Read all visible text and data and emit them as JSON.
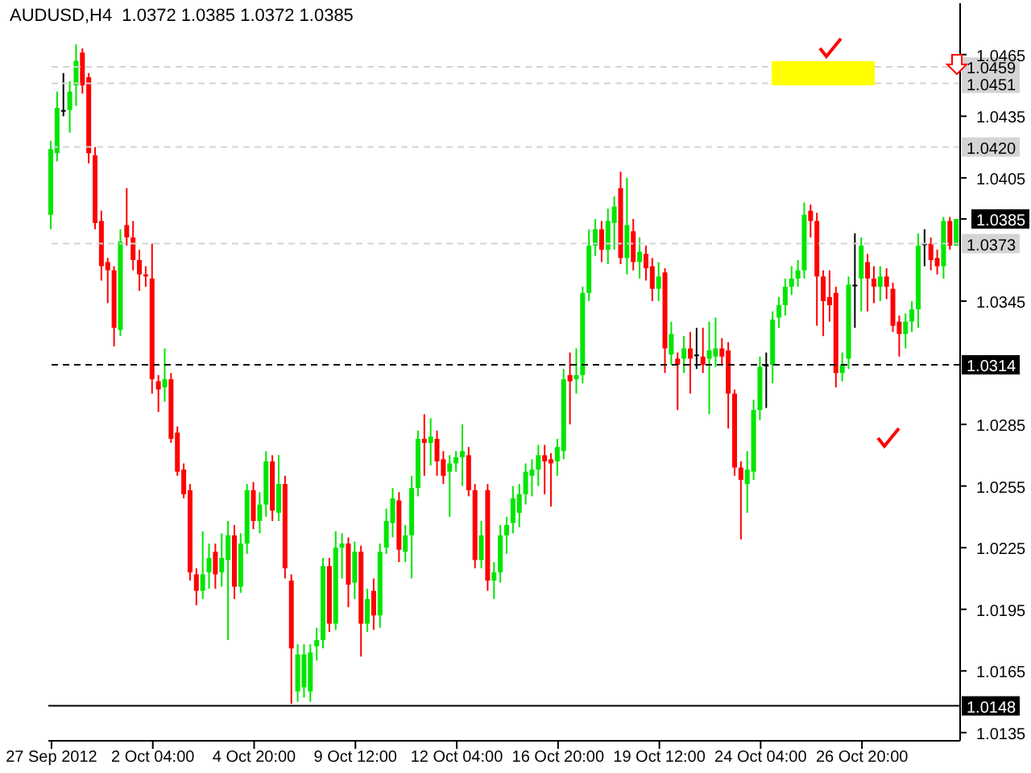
{
  "chart_data": {
    "type": "candlestick",
    "title": "AUDUSD,H4  1.0372 1.0385 1.0372 1.0385",
    "categories": [
      "27 Sep 2012",
      null,
      null,
      null,
      null,
      null,
      null,
      null,
      null,
      null,
      null,
      null,
      null,
      null,
      null,
      null,
      "2 Oct 04:00",
      null,
      null,
      null,
      null,
      null,
      null,
      null,
      null,
      null,
      null,
      null,
      null,
      null,
      null,
      null,
      "4 Oct 20:00",
      null,
      null,
      null,
      null,
      null,
      null,
      null,
      null,
      null,
      null,
      null,
      null,
      null,
      null,
      null,
      "9 Oct 12:00",
      null,
      null,
      null,
      null,
      null,
      null,
      null,
      null,
      null,
      null,
      null,
      null,
      null,
      null,
      null,
      "12 Oct 04:00",
      null,
      null,
      null,
      null,
      null,
      null,
      null,
      null,
      null,
      null,
      null,
      null,
      null,
      null,
      null,
      "16 Oct 20:00",
      null,
      null,
      null,
      null,
      null,
      null,
      null,
      null,
      null,
      null,
      null,
      null,
      null,
      null,
      null,
      "19 Oct 12:00",
      null,
      null,
      null,
      null,
      null,
      null,
      null,
      null,
      null,
      null,
      null,
      null,
      null,
      null,
      null,
      "24 Oct 04:00",
      null,
      null,
      null,
      null,
      null,
      null,
      null,
      null,
      null,
      null,
      null,
      null,
      null,
      null,
      null,
      "26 Oct 20:00",
      null,
      null,
      null,
      null,
      null,
      null,
      null,
      null,
      null,
      null,
      null,
      null,
      null,
      null,
      null
    ],
    "ohlc": [
      [
        1.0387,
        1.0423,
        1.038,
        1.0419
      ],
      [
        1.0417,
        1.0447,
        1.0413,
        1.0439
      ],
      [
        1.0438,
        1.0456,
        1.0435,
        1.0438
      ],
      [
        1.0438,
        1.0452,
        1.0427,
        1.0447
      ],
      [
        1.045,
        1.047,
        1.044,
        1.0462
      ],
      [
        1.0466,
        1.0468,
        1.0446,
        1.045
      ],
      [
        1.0454,
        1.0456,
        1.0412,
        1.0417
      ],
      [
        1.0416,
        1.042,
        1.038,
        1.0383
      ],
      [
        1.0384,
        1.0389,
        1.0355,
        1.0362
      ],
      [
        1.0364,
        1.0366,
        1.0344,
        1.036
      ],
      [
        1.036,
        1.0362,
        1.0323,
        1.0332
      ],
      [
        1.0331,
        1.038,
        1.0328,
        1.0374
      ],
      [
        1.0382,
        1.04,
        1.0372,
        1.0376
      ],
      [
        1.0376,
        1.0384,
        1.036,
        1.0365
      ],
      [
        1.0365,
        1.037,
        1.035,
        1.0358
      ],
      [
        1.0358,
        1.0362,
        1.0352,
        1.0357
      ],
      [
        1.0356,
        1.0373,
        1.03,
        1.0307
      ],
      [
        1.0306,
        1.0309,
        1.0291,
        1.0302
      ],
      [
        1.0303,
        1.0322,
        1.0296,
        1.0307
      ],
      [
        1.0307,
        1.031,
        1.0276,
        1.0278
      ],
      [
        1.0281,
        1.0284,
        1.026,
        1.0262
      ],
      [
        1.0263,
        1.0266,
        1.0249,
        1.0251
      ],
      [
        1.0253,
        1.0256,
        1.0209,
        1.0213
      ],
      [
        1.0212,
        1.0215,
        1.0197,
        1.0204
      ],
      [
        1.0204,
        1.0233,
        1.02,
        1.0212
      ],
      [
        1.0213,
        1.0227,
        1.0205,
        1.022
      ],
      [
        1.0223,
        1.0227,
        1.0205,
        1.0212
      ],
      [
        1.0213,
        1.0232,
        1.0206,
        1.022
      ],
      [
        1.0219,
        1.0238,
        1.018,
        1.0231
      ],
      [
        1.0231,
        1.0236,
        1.02,
        1.0206
      ],
      [
        1.0206,
        1.0232,
        1.0203,
        1.0227
      ],
      [
        1.0227,
        1.0256,
        1.0222,
        1.0253
      ],
      [
        1.0253,
        1.0257,
        1.0234,
        1.0238
      ],
      [
        1.0238,
        1.0252,
        1.0232,
        1.0246
      ],
      [
        1.0246,
        1.0272,
        1.024,
        1.0267
      ],
      [
        1.0267,
        1.027,
        1.0238,
        1.0243
      ],
      [
        1.0242,
        1.027,
        1.0238,
        1.0256
      ],
      [
        1.0256,
        1.026,
        1.021,
        1.0215
      ],
      [
        1.0209,
        1.0212,
        1.0149,
        1.0176
      ],
      [
        1.0155,
        1.0178,
        1.015,
        1.0173
      ],
      [
        1.0157,
        1.0178,
        1.0152,
        1.0173
      ],
      [
        1.0155,
        1.0178,
        1.015,
        1.0174
      ],
      [
        1.0177,
        1.0186,
        1.017,
        1.018
      ],
      [
        1.018,
        1.022,
        1.0176,
        1.0216
      ],
      [
        1.0216,
        1.022,
        1.0184,
        1.0188
      ],
      [
        1.0188,
        1.0233,
        1.0185,
        1.0225
      ],
      [
        1.0225,
        1.0232,
        1.021,
        1.0227
      ],
      [
        1.0227,
        1.023,
        1.0196,
        1.0207
      ],
      [
        1.0208,
        1.0228,
        1.02,
        1.0223
      ],
      [
        1.0223,
        1.0226,
        1.0172,
        1.0188
      ],
      [
        1.0188,
        1.0205,
        1.0184,
        1.02
      ],
      [
        1.0204,
        1.021,
        1.0185,
        1.0192
      ],
      [
        1.0192,
        1.0227,
        1.0186,
        1.0223
      ],
      [
        1.0225,
        1.0244,
        1.0222,
        1.0238
      ],
      [
        1.0237,
        1.0254,
        1.023,
        1.0249
      ],
      [
        1.0248,
        1.0252,
        1.0218,
        1.0224
      ],
      [
        1.0223,
        1.0236,
        1.0218,
        1.0231
      ],
      [
        1.0231,
        1.026,
        1.021,
        1.0254
      ],
      [
        1.0254,
        1.0282,
        1.025,
        1.0278
      ],
      [
        1.0278,
        1.029,
        1.026,
        1.0276
      ],
      [
        1.0276,
        1.0288,
        1.0265,
        1.0279
      ],
      [
        1.0278,
        1.0282,
        1.026,
        1.0267
      ],
      [
        1.0268,
        1.0272,
        1.0256,
        1.026
      ],
      [
        1.0262,
        1.027,
        1.024,
        1.0266
      ],
      [
        1.0266,
        1.0272,
        1.0262,
        1.0269
      ],
      [
        1.0269,
        1.0285,
        1.0255,
        1.0272
      ],
      [
        1.027,
        1.0274,
        1.025,
        1.0253
      ],
      [
        1.0253,
        1.0256,
        1.0215,
        1.0219
      ],
      [
        1.0219,
        1.0238,
        1.0215,
        1.0231
      ],
      [
        1.0253,
        1.0256,
        1.0204,
        1.0209
      ],
      [
        1.0209,
        1.0218,
        1.02,
        1.0213
      ],
      [
        1.0213,
        1.0236,
        1.0208,
        1.0231
      ],
      [
        1.0231,
        1.024,
        1.0222,
        1.0236
      ],
      [
        1.0237,
        1.0255,
        1.0232,
        1.0249
      ],
      [
        1.0242,
        1.0256,
        1.0235,
        1.0251
      ],
      [
        1.0251,
        1.0266,
        1.0246,
        1.0262
      ],
      [
        1.026,
        1.0268,
        1.025,
        1.0263
      ],
      [
        1.0263,
        1.0275,
        1.0255,
        1.027
      ],
      [
        1.027,
        1.0275,
        1.0251,
        1.0267
      ],
      [
        1.0268,
        1.0271,
        1.0245,
        1.0266
      ],
      [
        1.0267,
        1.0278,
        1.026,
        1.0274
      ],
      [
        1.0272,
        1.0312,
        1.0268,
        1.0307
      ],
      [
        1.0309,
        1.032,
        1.0285,
        1.0306
      ],
      [
        1.0307,
        1.0322,
        1.03,
        1.0309
      ],
      [
        1.0309,
        1.0352,
        1.0305,
        1.0349
      ],
      [
        1.0349,
        1.038,
        1.0345,
        1.0372
      ],
      [
        1.0372,
        1.0385,
        1.0367,
        1.038
      ],
      [
        1.038,
        1.0384,
        1.0364,
        1.037
      ],
      [
        1.037,
        1.039,
        1.0363,
        1.0384
      ],
      [
        1.0383,
        1.0396,
        1.037,
        1.0391
      ],
      [
        1.04,
        1.0408,
        1.0363,
        1.0366
      ],
      [
        1.0366,
        1.0405,
        1.0358,
        1.0382
      ],
      [
        1.0379,
        1.0385,
        1.036,
        1.0364
      ],
      [
        1.0364,
        1.0376,
        1.0356,
        1.0369
      ],
      [
        1.0368,
        1.0372,
        1.0355,
        1.0361
      ],
      [
        1.0362,
        1.0366,
        1.0345,
        1.0351
      ],
      [
        1.0351,
        1.0364,
        1.0345,
        1.0357
      ],
      [
        1.0359,
        1.0361,
        1.031,
        1.0322
      ],
      [
        1.0319,
        1.0335,
        1.0314,
        1.0329
      ],
      [
        1.0317,
        1.032,
        1.0292,
        1.0314
      ],
      [
        1.0317,
        1.0328,
        1.031,
        1.0322
      ],
      [
        1.0322,
        1.033,
        1.03,
        1.0317
      ],
      [
        1.0319,
        1.0332,
        1.0312,
        1.0319
      ],
      [
        1.0318,
        1.0332,
        1.031,
        1.0314
      ],
      [
        1.0317,
        1.0335,
        1.029,
        1.0321
      ],
      [
        1.0318,
        1.0337,
        1.0313,
        1.0322
      ],
      [
        1.0322,
        1.0327,
        1.0314,
        1.0318
      ],
      [
        1.0321,
        1.0325,
        1.0283,
        1.03
      ],
      [
        1.03,
        1.0302,
        1.026,
        1.0264
      ],
      [
        1.0264,
        1.0267,
        1.0229,
        1.0258
      ],
      [
        1.0256,
        1.0272,
        1.0242,
        1.0263
      ],
      [
        1.0262,
        1.0297,
        1.0258,
        1.0292
      ],
      [
        1.0292,
        1.0318,
        1.0287,
        1.0313
      ],
      [
        1.0314,
        1.032,
        1.0293,
        1.0314
      ],
      [
        1.0314,
        1.034,
        1.0305,
        1.0336
      ],
      [
        1.0337,
        1.0347,
        1.0332,
        1.0343
      ],
      [
        1.0343,
        1.0356,
        1.0338,
        1.0352
      ],
      [
        1.0352,
        1.0362,
        1.0348,
        1.0356
      ],
      [
        1.0356,
        1.0365,
        1.0352,
        1.036
      ],
      [
        1.036,
        1.0393,
        1.0356,
        1.0387
      ],
      [
        1.0389,
        1.0392,
        1.0376,
        1.0384
      ],
      [
        1.0384,
        1.0388,
        1.0333,
        1.0357
      ],
      [
        1.0357,
        1.036,
        1.0328,
        1.0345
      ],
      [
        1.0347,
        1.036,
        1.0335,
        1.0343
      ],
      [
        1.0349,
        1.0352,
        1.0303,
        1.031
      ],
      [
        1.031,
        1.032,
        1.0306,
        1.0314
      ],
      [
        1.0317,
        1.0357,
        1.0312,
        1.0353
      ],
      [
        1.0353,
        1.0378,
        1.0332,
        1.0353
      ],
      [
        1.0356,
        1.0376,
        1.034,
        1.0372
      ],
      [
        1.0364,
        1.0368,
        1.034,
        1.0356
      ],
      [
        1.0356,
        1.0362,
        1.0344,
        1.0352
      ],
      [
        1.0352,
        1.0362,
        1.0345,
        1.0357
      ],
      [
        1.0357,
        1.0361,
        1.0346,
        1.0352
      ],
      [
        1.0351,
        1.0354,
        1.033,
        1.0333
      ],
      [
        1.0335,
        1.0338,
        1.0318,
        1.0329
      ],
      [
        1.0329,
        1.0339,
        1.0322,
        1.0335
      ],
      [
        1.0335,
        1.0345,
        1.033,
        1.0341
      ],
      [
        1.0341,
        1.0378,
        1.0332,
        1.0372
      ],
      [
        1.0373,
        1.038,
        1.0362,
        1.0373
      ],
      [
        1.0373,
        1.0376,
        1.036,
        1.0365
      ],
      [
        1.0366,
        1.037,
        1.0358,
        1.0362
      ],
      [
        1.0362,
        1.0386,
        1.0356,
        1.0384
      ],
      [
        1.0384,
        1.0386,
        1.037,
        1.0372
      ],
      [
        1.0372,
        1.0385,
        1.0372,
        1.0385
      ]
    ],
    "colors": [
      "#00e600",
      "#00e600",
      "#000000",
      "#00e600",
      "#00e600",
      "#ff0000",
      "#ff0000",
      "#ff0000",
      "#ff0000",
      "#ff0000",
      "#ff0000",
      "#00e600",
      "#ff0000",
      "#ff0000",
      "#ff0000",
      "#ff0000",
      "#ff0000",
      "#ff0000",
      "#00e600",
      "#ff0000",
      "#ff0000",
      "#ff0000",
      "#ff0000",
      "#ff0000",
      "#00e600",
      "#00e600",
      "#ff0000",
      "#00e600",
      "#00e600",
      "#ff0000",
      "#00e600",
      "#00e600",
      "#ff0000",
      "#00e600",
      "#00e600",
      "#ff0000",
      "#00e600",
      "#ff0000",
      "#ff0000",
      "#00e600",
      "#00e600",
      "#00e600",
      "#00e600",
      "#00e600",
      "#ff0000",
      "#00e600",
      "#00e600",
      "#ff0000",
      "#00e600",
      "#ff0000",
      "#00e600",
      "#ff0000",
      "#00e600",
      "#00e600",
      "#00e600",
      "#ff0000",
      "#00e600",
      "#00e600",
      "#00e600",
      "#ff0000",
      "#00e600",
      "#ff0000",
      "#ff0000",
      "#00e600",
      "#00e600",
      "#00e600",
      "#ff0000",
      "#ff0000",
      "#00e600",
      "#ff0000",
      "#00e600",
      "#00e600",
      "#00e600",
      "#00e600",
      "#00e600",
      "#00e600",
      "#00e600",
      "#00e600",
      "#ff0000",
      "#ff0000",
      "#00e600",
      "#00e600",
      "#ff0000",
      "#00e600",
      "#00e600",
      "#00e600",
      "#00e600",
      "#ff0000",
      "#00e600",
      "#00e600",
      "#ff0000",
      "#00e600",
      "#ff0000",
      "#00e600",
      "#ff0000",
      "#ff0000",
      "#00e600",
      "#ff0000",
      "#00e600",
      "#ff0000",
      "#00e600",
      "#ff0000",
      "#000000",
      "#ff0000",
      "#00e600",
      "#00e600",
      "#ff0000",
      "#ff0000",
      "#ff0000",
      "#ff0000",
      "#00e600",
      "#00e600",
      "#00e600",
      "#000000",
      "#00e600",
      "#00e600",
      "#00e600",
      "#00e600",
      "#00e600",
      "#00e600",
      "#ff0000",
      "#ff0000",
      "#ff0000",
      "#ff0000",
      "#ff0000",
      "#00e600",
      "#00e600",
      "#000000",
      "#00e600",
      "#ff0000",
      "#ff0000",
      "#00e600",
      "#ff0000",
      "#ff0000",
      "#ff0000",
      "#00e600",
      "#00e600",
      "#00e600",
      "#000000",
      "#ff0000",
      "#ff0000",
      "#00e600",
      "#ff0000",
      "#00e600"
    ],
    "ylim": [
      1.0131,
      1.049
    ],
    "yticks": [
      1.0465,
      1.0435,
      1.0405,
      1.0385,
      1.0345,
      1.0285,
      1.0255,
      1.0225,
      1.0195,
      1.0165,
      1.0135
    ],
    "ref_lines": [
      {
        "axis": "y",
        "value": 1.0459,
        "label": "1.0459",
        "color": "#d4d4d4",
        "line_style": "dashed"
      },
      {
        "axis": "y",
        "value": 1.0451,
        "label": "1.0451",
        "color": "#d4d4d4",
        "line_style": "dashed"
      },
      {
        "axis": "y",
        "value": 1.042,
        "label": "1.0420",
        "color": "#d4d4d4",
        "line_style": "dashed"
      },
      {
        "axis": "y",
        "value": 1.0373,
        "label": "1.0373",
        "color": "#d4d4d4",
        "line_style": "dashed"
      },
      {
        "axis": "y",
        "value": 1.0314,
        "label": "1.0314",
        "color": "#000000",
        "line_style": "dashed"
      },
      {
        "axis": "y",
        "value": 1.0148,
        "label": "1.0148",
        "color": "#000000",
        "line_style": "solid"
      }
    ]
  }
}
